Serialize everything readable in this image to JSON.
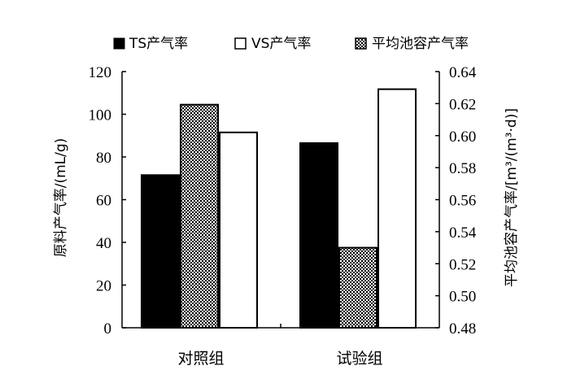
{
  "chart_data": {
    "type": "bar",
    "categories": [
      "对照组",
      "试验组"
    ],
    "series": [
      {
        "name": "TS产气率",
        "axis": "left",
        "values": [
          71.5,
          86.5
        ],
        "fill": "solid-black"
      },
      {
        "name": "VS产气率",
        "axis": "right",
        "values": [
          0.602,
          0.629
        ],
        "fill": "white"
      },
      {
        "name": "平均池容产气率",
        "axis": "left",
        "values": [
          104.5,
          37.5
        ],
        "fill": "checkered-gray"
      }
    ],
    "series_order_per_group": [
      0,
      2,
      1
    ],
    "ylabel_left": "原料产气率/(mL/g)",
    "ylabel_right": "平均池容产气率/[m³/(m³·d)]",
    "ylim_left": [
      0,
      120
    ],
    "ylim_right": [
      0.48,
      0.64
    ],
    "yticks_left": [
      "0",
      "20",
      "40",
      "60",
      "80",
      "100",
      "120"
    ],
    "yticks_right": [
      "0.48",
      "0.50",
      "0.52",
      "0.54",
      "0.56",
      "0.58",
      "0.60",
      "0.62",
      "0.64"
    ],
    "grid": false,
    "legend_position": "top"
  }
}
